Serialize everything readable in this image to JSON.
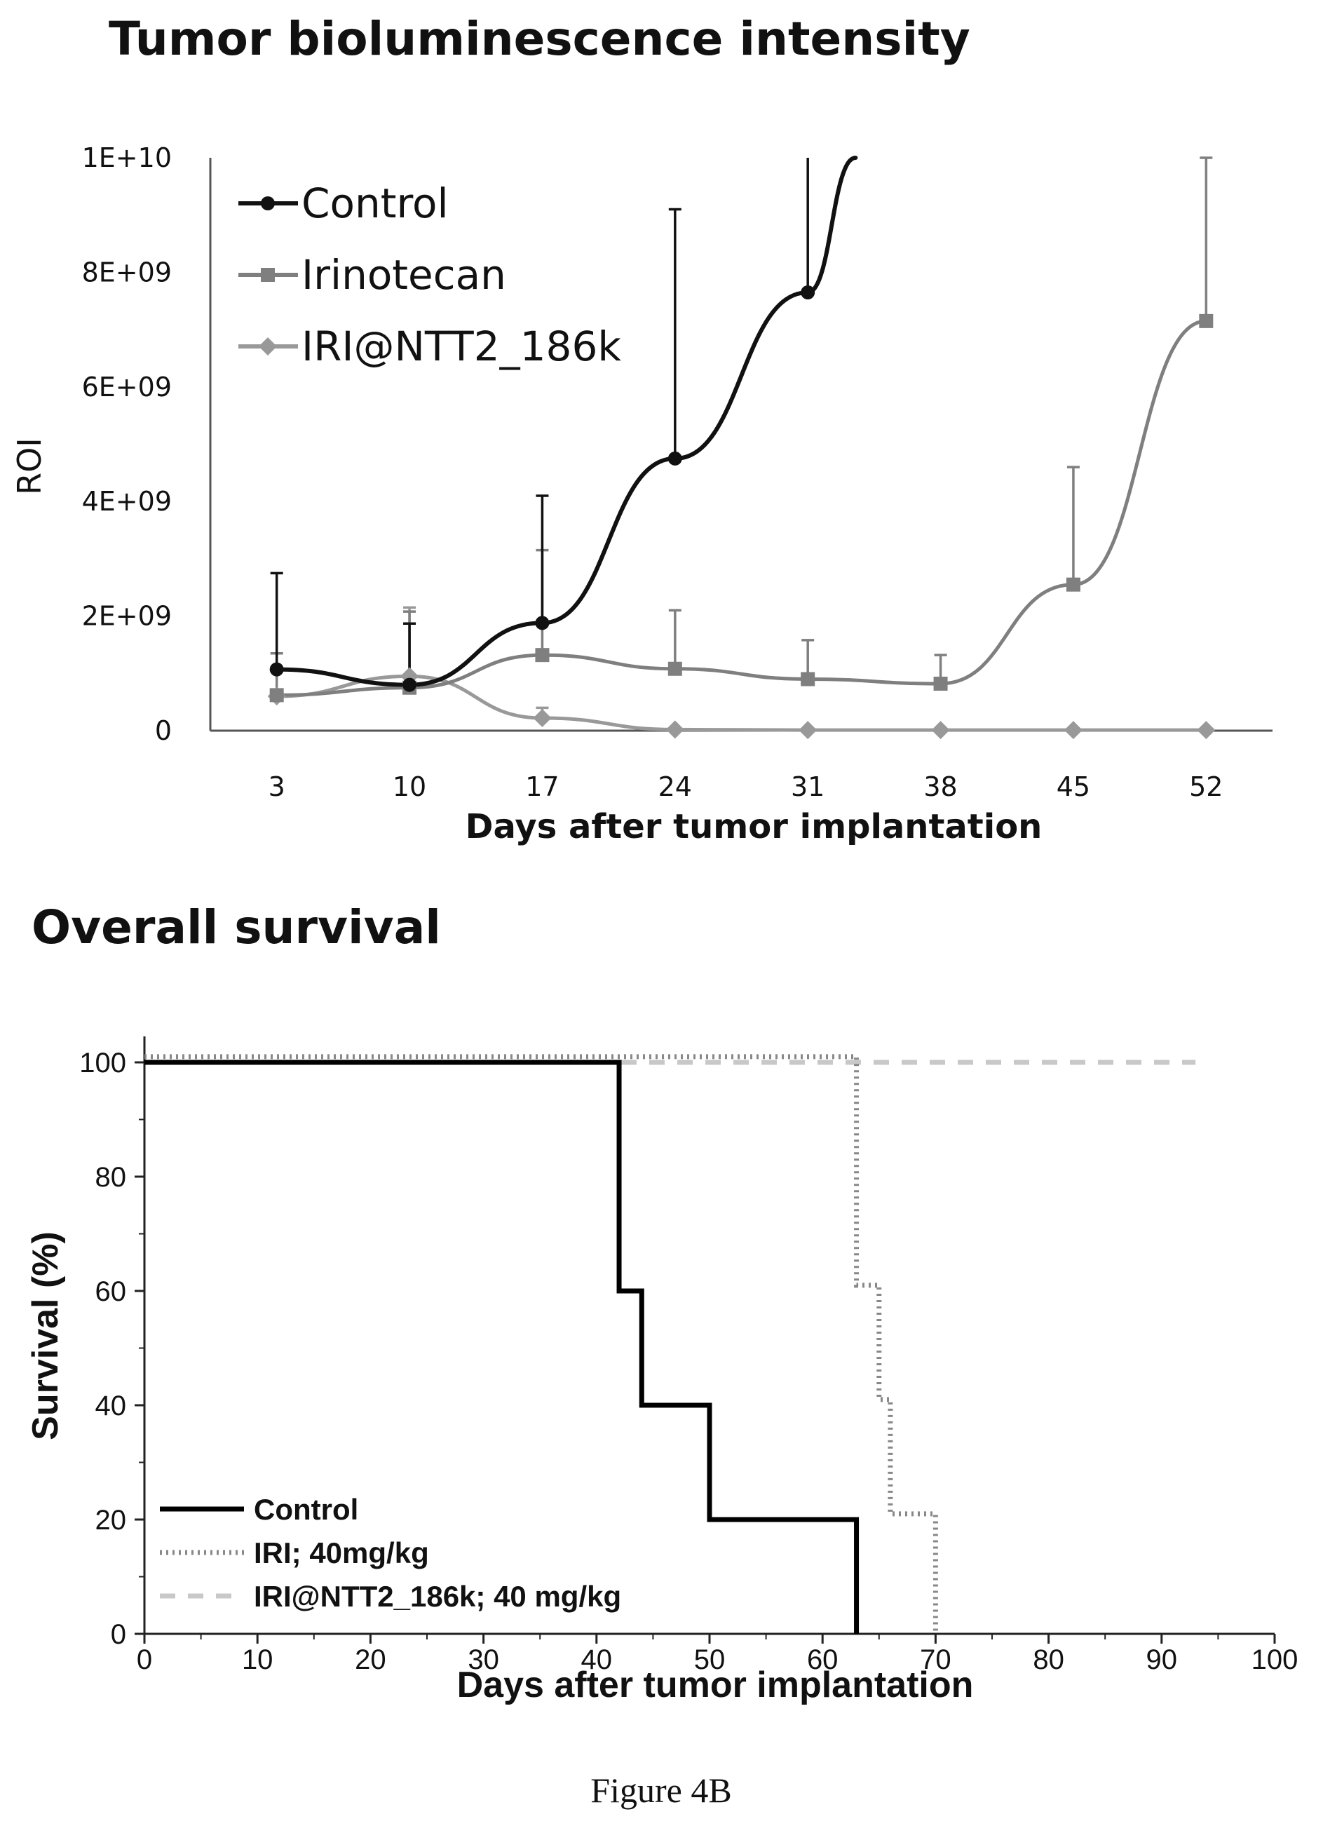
{
  "chart_data": [
    {
      "type": "line",
      "title": "Tumor bioluminescence intensity",
      "xlabel": "Days after tumor implantation",
      "ylabel": "ROI",
      "categories": [
        "3",
        "10",
        "17",
        "24",
        "31",
        "38",
        "45",
        "52"
      ],
      "yticks": [
        "0",
        "2E+09",
        "4E+09",
        "6E+09",
        "8E+09",
        "1E+10"
      ],
      "ylim": [
        0,
        10000000000
      ],
      "legend_position": "top-left",
      "series": [
        {
          "name": "Control",
          "color": "#111111",
          "marker": "circle",
          "values": [
            1070000000,
            800000000,
            1880000000,
            4750000000,
            7650000000,
            null,
            null,
            null
          ],
          "error_upper": [
            2750000000,
            1870000000,
            4100000000,
            9100000000,
            11000000000,
            null,
            null,
            null
          ],
          "continuation": {
            "x_between": [
              "31",
              "38"
            ],
            "y": 10000000000
          }
        },
        {
          "name": "Irinotecan",
          "color": "#7f7f7f",
          "marker": "square",
          "values": [
            620000000,
            750000000,
            1320000000,
            1080000000,
            900000000,
            820000000,
            2550000000,
            7150000000
          ],
          "error_upper": [
            1350000000,
            2080000000,
            3150000000,
            2100000000,
            1580000000,
            1320000000,
            4600000000,
            10000000000
          ]
        },
        {
          "name": "IRI@NTT2_186k",
          "color": "#999999",
          "marker": "diamond",
          "values": [
            600000000,
            950000000,
            220000000,
            20000000,
            10000000,
            10000000,
            10000000,
            10000000
          ],
          "error_upper": [
            700000000,
            2150000000,
            400000000,
            20000000,
            10000000,
            10000000,
            10000000,
            10000000
          ]
        }
      ]
    },
    {
      "type": "line",
      "step": true,
      "title": "Overall survival",
      "xlabel": "Days after tumor implantation",
      "ylabel": "Survival (%)",
      "xlim": [
        0,
        100
      ],
      "ylim": [
        0,
        100
      ],
      "xticks": [
        "0",
        "10",
        "20",
        "30",
        "40",
        "50",
        "60",
        "70",
        "80",
        "90",
        "100"
      ],
      "yticks": [
        "0",
        "20",
        "40",
        "60",
        "80",
        "100"
      ],
      "legend_position": "bottom-left",
      "series": [
        {
          "name": "Control",
          "color": "#000000",
          "style": "solid",
          "points": [
            [
              0,
              100
            ],
            [
              42,
              100
            ],
            [
              42,
              60
            ],
            [
              44,
              60
            ],
            [
              44,
              40
            ],
            [
              50,
              40
            ],
            [
              50,
              20
            ],
            [
              63,
              20
            ],
            [
              63,
              0
            ]
          ]
        },
        {
          "name": "IRI; 40mg/kg",
          "color": "#888888",
          "style": "dotted",
          "points": [
            [
              0,
              101
            ],
            [
              63,
              101
            ],
            [
              63,
              61
            ],
            [
              65,
              61
            ],
            [
              65,
              41
            ],
            [
              66,
              41
            ],
            [
              66,
              21
            ],
            [
              70,
              21
            ],
            [
              70,
              0
            ]
          ]
        },
        {
          "name": "IRI@NTT2_186k; 40 mg/kg",
          "color": "#c8c8c8",
          "style": "dashed",
          "points": [
            [
              0,
              100
            ],
            [
              93,
              100
            ]
          ]
        }
      ]
    }
  ],
  "caption": "Figure 4B"
}
